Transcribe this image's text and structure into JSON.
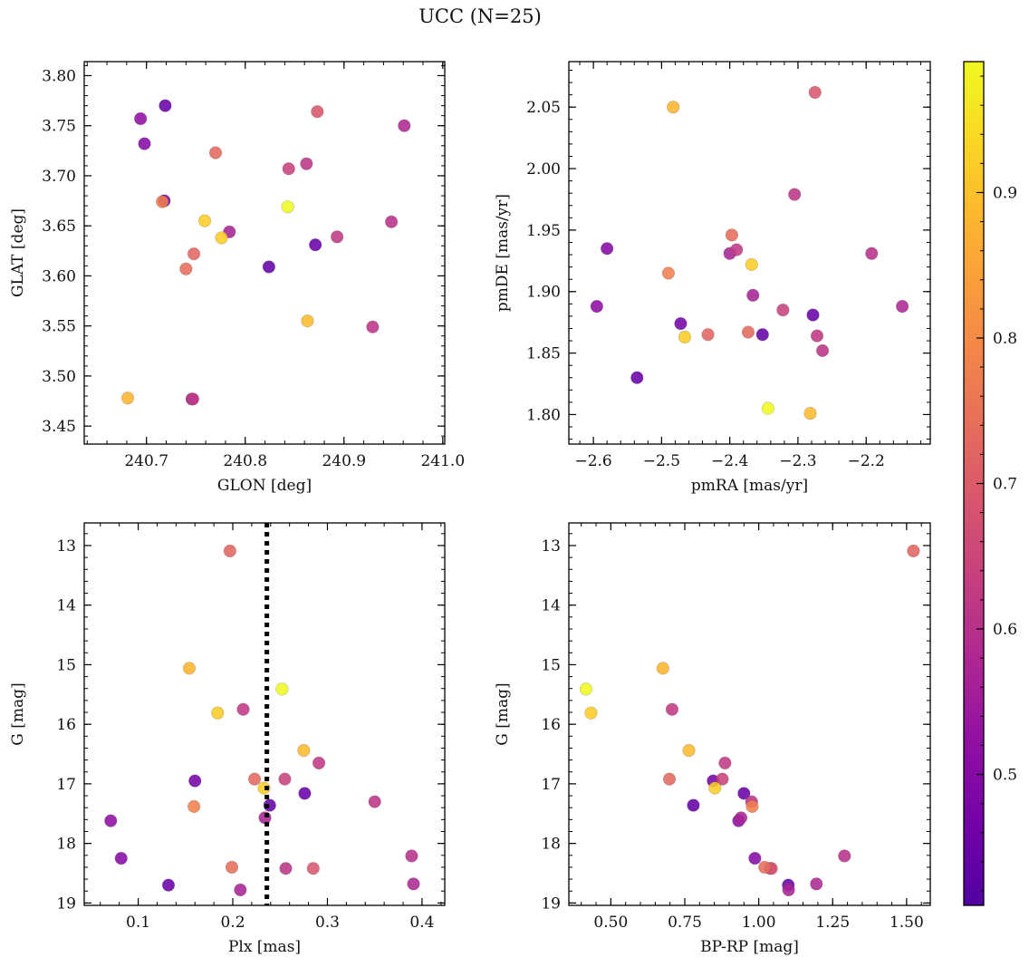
{
  "figure": {
    "title": "UCC (N=25)"
  },
  "chart_data": {
    "type": "scatter",
    "title": "UCC (N=25)",
    "colorbar": {
      "colormap": "plasma",
      "range": [
        0.41,
        0.99
      ],
      "ticks": [
        0.5,
        0.6,
        0.7,
        0.8,
        0.9
      ],
      "tick_labels": [
        "0.5",
        "0.6",
        "0.7",
        "0.8",
        "0.9"
      ]
    },
    "stars": {
      "GLON": [
        240.694,
        240.698,
        240.719,
        240.681,
        240.716,
        240.718,
        240.759,
        240.748,
        240.74,
        240.746,
        240.747,
        240.77,
        240.776,
        240.784,
        240.824,
        240.843,
        240.844,
        240.862,
        240.863,
        240.871,
        240.873,
        240.893,
        240.929,
        240.948,
        240.961
      ],
      "GLAT": [
        3.757,
        3.732,
        3.77,
        3.478,
        3.674,
        3.675,
        3.655,
        3.622,
        3.607,
        3.477,
        3.477,
        3.723,
        3.638,
        3.644,
        3.609,
        3.669,
        3.707,
        3.712,
        3.555,
        3.631,
        3.764,
        3.639,
        3.549,
        3.654,
        3.75
      ],
      "pmRA": [
        -2.595,
        -2.58,
        -2.536,
        -2.483,
        -2.49,
        -2.472,
        -2.466,
        -2.432,
        -2.397,
        -2.4,
        -2.39,
        -2.373,
        -2.368,
        -2.366,
        -2.352,
        -2.344,
        -2.322,
        -2.305,
        -2.282,
        -2.278,
        -2.275,
        -2.272,
        -2.264,
        -2.192,
        -2.147
      ],
      "pmDE": [
        1.888,
        1.935,
        1.83,
        2.05,
        1.915,
        1.874,
        1.863,
        1.865,
        1.946,
        1.931,
        1.934,
        1.867,
        1.922,
        1.897,
        1.865,
        1.805,
        1.885,
        1.979,
        1.801,
        1.881,
        2.062,
        1.864,
        1.852,
        1.931,
        1.888
      ],
      "Plx": [
        0.071,
        0.082,
        0.132,
        0.154,
        0.159,
        0.16,
        0.184,
        0.197,
        0.199,
        0.208,
        0.211,
        0.223,
        0.233,
        0.234,
        0.239,
        0.252,
        0.255,
        0.256,
        0.275,
        0.276,
        0.285,
        0.291,
        0.35,
        0.389,
        0.391
      ],
      "G": [
        17.62,
        18.25,
        18.7,
        15.06,
        17.38,
        16.95,
        15.81,
        13.09,
        18.4,
        18.78,
        15.75,
        16.92,
        17.07,
        17.57,
        17.36,
        15.41,
        16.92,
        18.42,
        16.44,
        17.16,
        18.42,
        16.65,
        17.3,
        18.21,
        18.68
      ],
      "BP_RP": [
        0.932,
        0.987,
        1.1,
        0.676,
        0.978,
        0.846,
        0.433,
        1.523,
        1.02,
        1.101,
        0.707,
        0.698,
        0.852,
        0.94,
        0.779,
        0.416,
        0.877,
        1.039,
        0.764,
        0.95,
        1.043,
        0.886,
        0.976,
        1.29,
        1.195
      ],
      "prob": [
        0.52,
        0.5,
        0.45,
        0.88,
        0.78,
        0.47,
        0.92,
        0.72,
        0.74,
        0.57,
        0.62,
        0.73,
        0.92,
        0.57,
        0.44,
        0.99,
        0.64,
        0.61,
        0.89,
        0.45,
        0.69,
        0.62,
        0.61,
        0.6,
        0.58
      ]
    },
    "panels": [
      {
        "type": "scatter",
        "x_key": "GLON",
        "y_key": "GLAT",
        "xlabel": "GLON [deg]",
        "ylabel": "GLAT [deg]",
        "xlim": [
          240.637,
          241.002
        ],
        "ylim": [
          3.432,
          3.814
        ],
        "y_inverted": false,
        "xticks": [
          240.7,
          240.8,
          240.9,
          241.0
        ],
        "xtick_labels": [
          "240.7",
          "240.8",
          "240.9",
          "241.0"
        ],
        "yticks": [
          3.45,
          3.5,
          3.55,
          3.6,
          3.65,
          3.7,
          3.75,
          3.8
        ],
        "ytick_labels": [
          "3.45",
          "3.50",
          "3.55",
          "3.60",
          "3.65",
          "3.70",
          "3.75",
          "3.80"
        ]
      },
      {
        "type": "scatter",
        "x_key": "pmRA",
        "y_key": "pmDE",
        "xlabel": "pmRA [mas/yr]",
        "ylabel": "pmDE [mas/yr]",
        "xlim": [
          -2.636,
          -2.106
        ],
        "ylim": [
          1.776,
          2.087
        ],
        "y_inverted": false,
        "xticks": [
          -2.6,
          -2.5,
          -2.4,
          -2.3,
          -2.2,
          -2.1
        ],
        "xtick_labels": [
          "−2.6",
          "−2.5",
          "−2.4",
          "−2.3",
          "−2.2",
          "−2.1"
        ],
        "yticks": [
          1.8,
          1.85,
          1.9,
          1.95,
          2.0,
          2.05
        ],
        "ytick_labels": [
          "1.80",
          "1.85",
          "1.90",
          "1.95",
          "2.00",
          "2.05"
        ]
      },
      {
        "type": "scatter",
        "x_key": "Plx",
        "y_key": "G",
        "xlabel": "Plx [mas]",
        "ylabel": "G [mag]",
        "xlim": [
          0.043,
          0.424
        ],
        "ylim": [
          12.62,
          19.04
        ],
        "y_inverted": true,
        "xticks": [
          0.1,
          0.2,
          0.3,
          0.4
        ],
        "xtick_labels": [
          "0.1",
          "0.2",
          "0.3",
          "0.4"
        ],
        "yticks": [
          13,
          14,
          15,
          16,
          17,
          18,
          19
        ],
        "ytick_labels": [
          "13",
          "14",
          "15",
          "16",
          "17",
          "18",
          "19"
        ],
        "vline": {
          "x": 0.236,
          "style": "dotted",
          "color": "#000000"
        }
      },
      {
        "type": "scatter",
        "x_key": "BP_RP",
        "y_key": "G",
        "xlabel": "BP-RP [mag]",
        "ylabel": "G [mag]",
        "xlim": [
          0.358,
          1.58
        ],
        "ylim": [
          12.62,
          19.04
        ],
        "y_inverted": true,
        "xticks": [
          0.5,
          0.75,
          1.0,
          1.25,
          1.5
        ],
        "xtick_labels": [
          "0.50",
          "0.75",
          "1.00",
          "1.25",
          "1.50"
        ],
        "yticks": [
          13,
          14,
          15,
          16,
          17,
          18,
          19
        ],
        "ytick_labels": [
          "13",
          "14",
          "15",
          "16",
          "17",
          "18",
          "19"
        ]
      }
    ]
  }
}
